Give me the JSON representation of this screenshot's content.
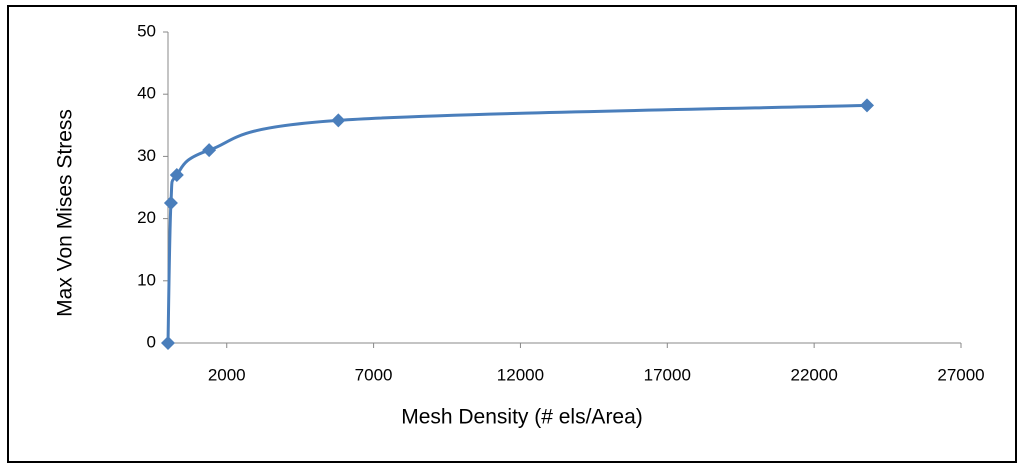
{
  "chart_data": {
    "type": "scatter",
    "x_label": "Mesh Density (# els/Area)",
    "y_label": "Max Von Mises Stress",
    "series": [
      {
        "name": "Max Von Mises Stress",
        "color": "#4a7ebb",
        "x": [
          0,
          100,
          300,
          1400,
          5800,
          23800
        ],
        "values": [
          0,
          22.5,
          27,
          31,
          35.8,
          38.2
        ]
      }
    ],
    "xlim": [
      0,
      27000
    ],
    "xticks": [
      2000,
      7000,
      12000,
      17000,
      22000,
      27000
    ],
    "ylim": [
      0,
      50
    ],
    "yticks": [
      0,
      10,
      20,
      30,
      40,
      50
    ],
    "smooth": true
  }
}
